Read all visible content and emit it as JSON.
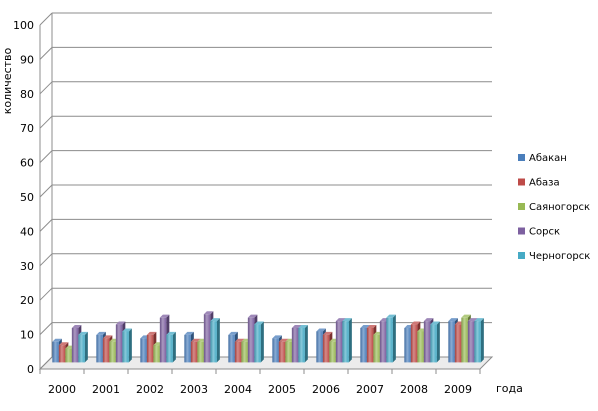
{
  "chart_data": {
    "type": "bar",
    "title": "",
    "xlabel": "года",
    "ylabel": "количество",
    "ylim": [
      0,
      100
    ],
    "yticks": [
      0,
      10,
      20,
      30,
      40,
      50,
      60,
      70,
      80,
      90,
      100
    ],
    "grid": true,
    "legend_position": "right",
    "categories": [
      "2000",
      "2001",
      "2002",
      "2003",
      "2004",
      "2005",
      "2006",
      "2007",
      "2008",
      "2009"
    ],
    "series": [
      {
        "name": "Абакан",
        "color": "#4a7ebb",
        "values": [
          6,
          8,
          7,
          8,
          8,
          7,
          9,
          10,
          10,
          12
        ]
      },
      {
        "name": "Абаза",
        "color": "#be4b48",
        "values": [
          5,
          7,
          8,
          6,
          6,
          6,
          8,
          10,
          11,
          11
        ]
      },
      {
        "name": "Саяногорск",
        "color": "#98b954",
        "values": [
          4,
          6,
          5,
          6,
          6,
          6,
          6,
          8,
          9,
          13
        ]
      },
      {
        "name": "Сорск",
        "color": "#7d60a0",
        "values": [
          10,
          11,
          13,
          14,
          13,
          10,
          12,
          12,
          12,
          12
        ]
      },
      {
        "name": "Черногорск",
        "color": "#46aac5",
        "values": [
          8,
          9,
          8,
          12,
          11,
          10,
          12,
          13,
          11,
          12
        ]
      }
    ]
  }
}
